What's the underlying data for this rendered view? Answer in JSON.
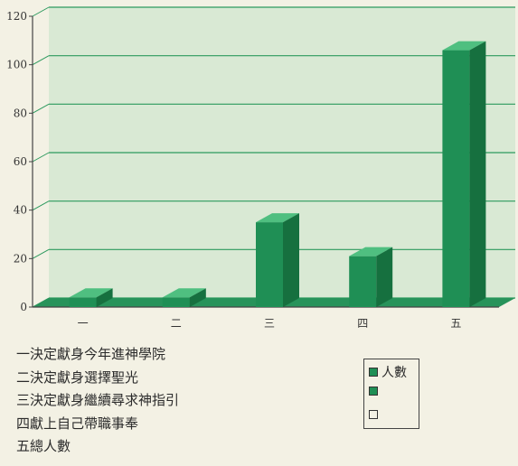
{
  "chart_data": {
    "type": "bar",
    "categories": [
      "一",
      "二",
      "三",
      "四",
      "五"
    ],
    "series": [
      {
        "name": "人數",
        "values": [
          4,
          4,
          35,
          21,
          106
        ],
        "color": "#1f8f55"
      }
    ],
    "ylim": [
      0,
      120
    ],
    "yticks": [
      0,
      20,
      40,
      60,
      80,
      100,
      120
    ],
    "grid": true,
    "legend": {
      "placement": "bottom-right",
      "entries": [
        "人數",
        "",
        ""
      ]
    }
  },
  "notes": [
    "一決定獻身今年進神學院",
    "二決定獻身選擇聖光",
    "三決定獻身繼續尋求神指引",
    "四獻上自己帶職事奉",
    "五總人數"
  ],
  "colors": {
    "bar": "#1f8f55",
    "bar_top": "#4fbf80",
    "bar_side": "#16703f",
    "grid": "#2d9a5e",
    "wall": "#a8d9b8",
    "floor": "#27935a"
  }
}
